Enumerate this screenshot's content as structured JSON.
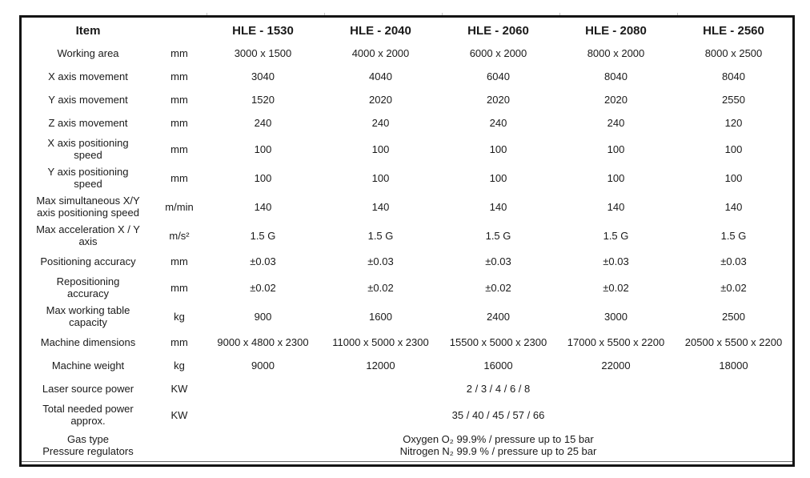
{
  "colors": {
    "border": "#141414",
    "text": "#1a1a1a",
    "column_tick": "#c4c4c4",
    "background": "#ffffff"
  },
  "table": {
    "header": {
      "item": "Item",
      "unit": "",
      "models": [
        "HLE - 1530",
        "HLE - 2040",
        "HLE - 2060",
        "HLE - 2080",
        "HLE - 2560"
      ]
    },
    "rows": [
      {
        "item": "Working area",
        "unit": "mm",
        "values": [
          "3000 x 1500",
          "4000 x 2000",
          "6000 x 2000",
          "8000 x 2000",
          "8000 x 2500"
        ]
      },
      {
        "item": "X axis movement",
        "unit": "mm",
        "values": [
          "3040",
          "4040",
          "6040",
          "8040",
          "8040"
        ]
      },
      {
        "item": "Y axis movement",
        "unit": "mm",
        "values": [
          "1520",
          "2020",
          "2020",
          "2020",
          "2550"
        ]
      },
      {
        "item": "Z axis movement",
        "unit": "mm",
        "values": [
          "240",
          "240",
          "240",
          "240",
          "120"
        ]
      },
      {
        "item": "X axis positioning\nspeed",
        "unit": "mm",
        "values": [
          "100",
          "100",
          "100",
          "100",
          "100"
        ]
      },
      {
        "item": "Y axis positioning\nspeed",
        "unit": "mm",
        "values": [
          "100",
          "100",
          "100",
          "100",
          "100"
        ]
      },
      {
        "item": "Max simultaneous X/Y\naxis positioning speed",
        "unit": "m/min",
        "values": [
          "140",
          "140",
          "140",
          "140",
          "140"
        ]
      },
      {
        "item": "Max acceleration X / Y\naxis",
        "unit": "m/s²",
        "values": [
          "1.5 G",
          "1.5 G",
          "1.5 G",
          "1.5 G",
          "1.5 G"
        ]
      },
      {
        "item": "Positioning accuracy",
        "unit": "mm",
        "values": [
          "±0.03",
          "±0.03",
          "±0.03",
          "±0.03",
          "±0.03"
        ]
      },
      {
        "item": "Repositioning\naccuracy",
        "unit": "mm",
        "values": [
          "±0.02",
          "±0.02",
          "±0.02",
          "±0.02",
          "±0.02"
        ]
      },
      {
        "item": "Max working table\ncapacity",
        "unit": "kg",
        "values": [
          "900",
          "1600",
          "2400",
          "3000",
          "2500"
        ]
      },
      {
        "item": "Machine dimensions",
        "unit": "mm",
        "values": [
          "9000 x 4800 x 2300",
          "11000 x 5000 x 2300",
          "15500 x 5000 x 2300",
          "17000 x 5500 x 2200",
          "20500 x 5500 x 2200"
        ]
      },
      {
        "item": "Machine weight",
        "unit": "kg",
        "values": [
          "9000",
          "12000",
          "16000",
          "22000",
          "18000"
        ]
      },
      {
        "item": "Laser source power",
        "unit": "KW",
        "merged_value": "2 / 3 / 4 / 6 / 8"
      },
      {
        "item": "Total needed power\napprox.",
        "unit": "KW",
        "merged_value": "35 / 40 / 45 / 57 / 66"
      },
      {
        "item": "Gas type\nPressure regulators",
        "unit": "",
        "merged_value": "Oxygen O₂ 99.9% / pressure up to 15 bar\nNitrogen N₂ 99.9 % / pressure up to 25 bar"
      }
    ]
  }
}
